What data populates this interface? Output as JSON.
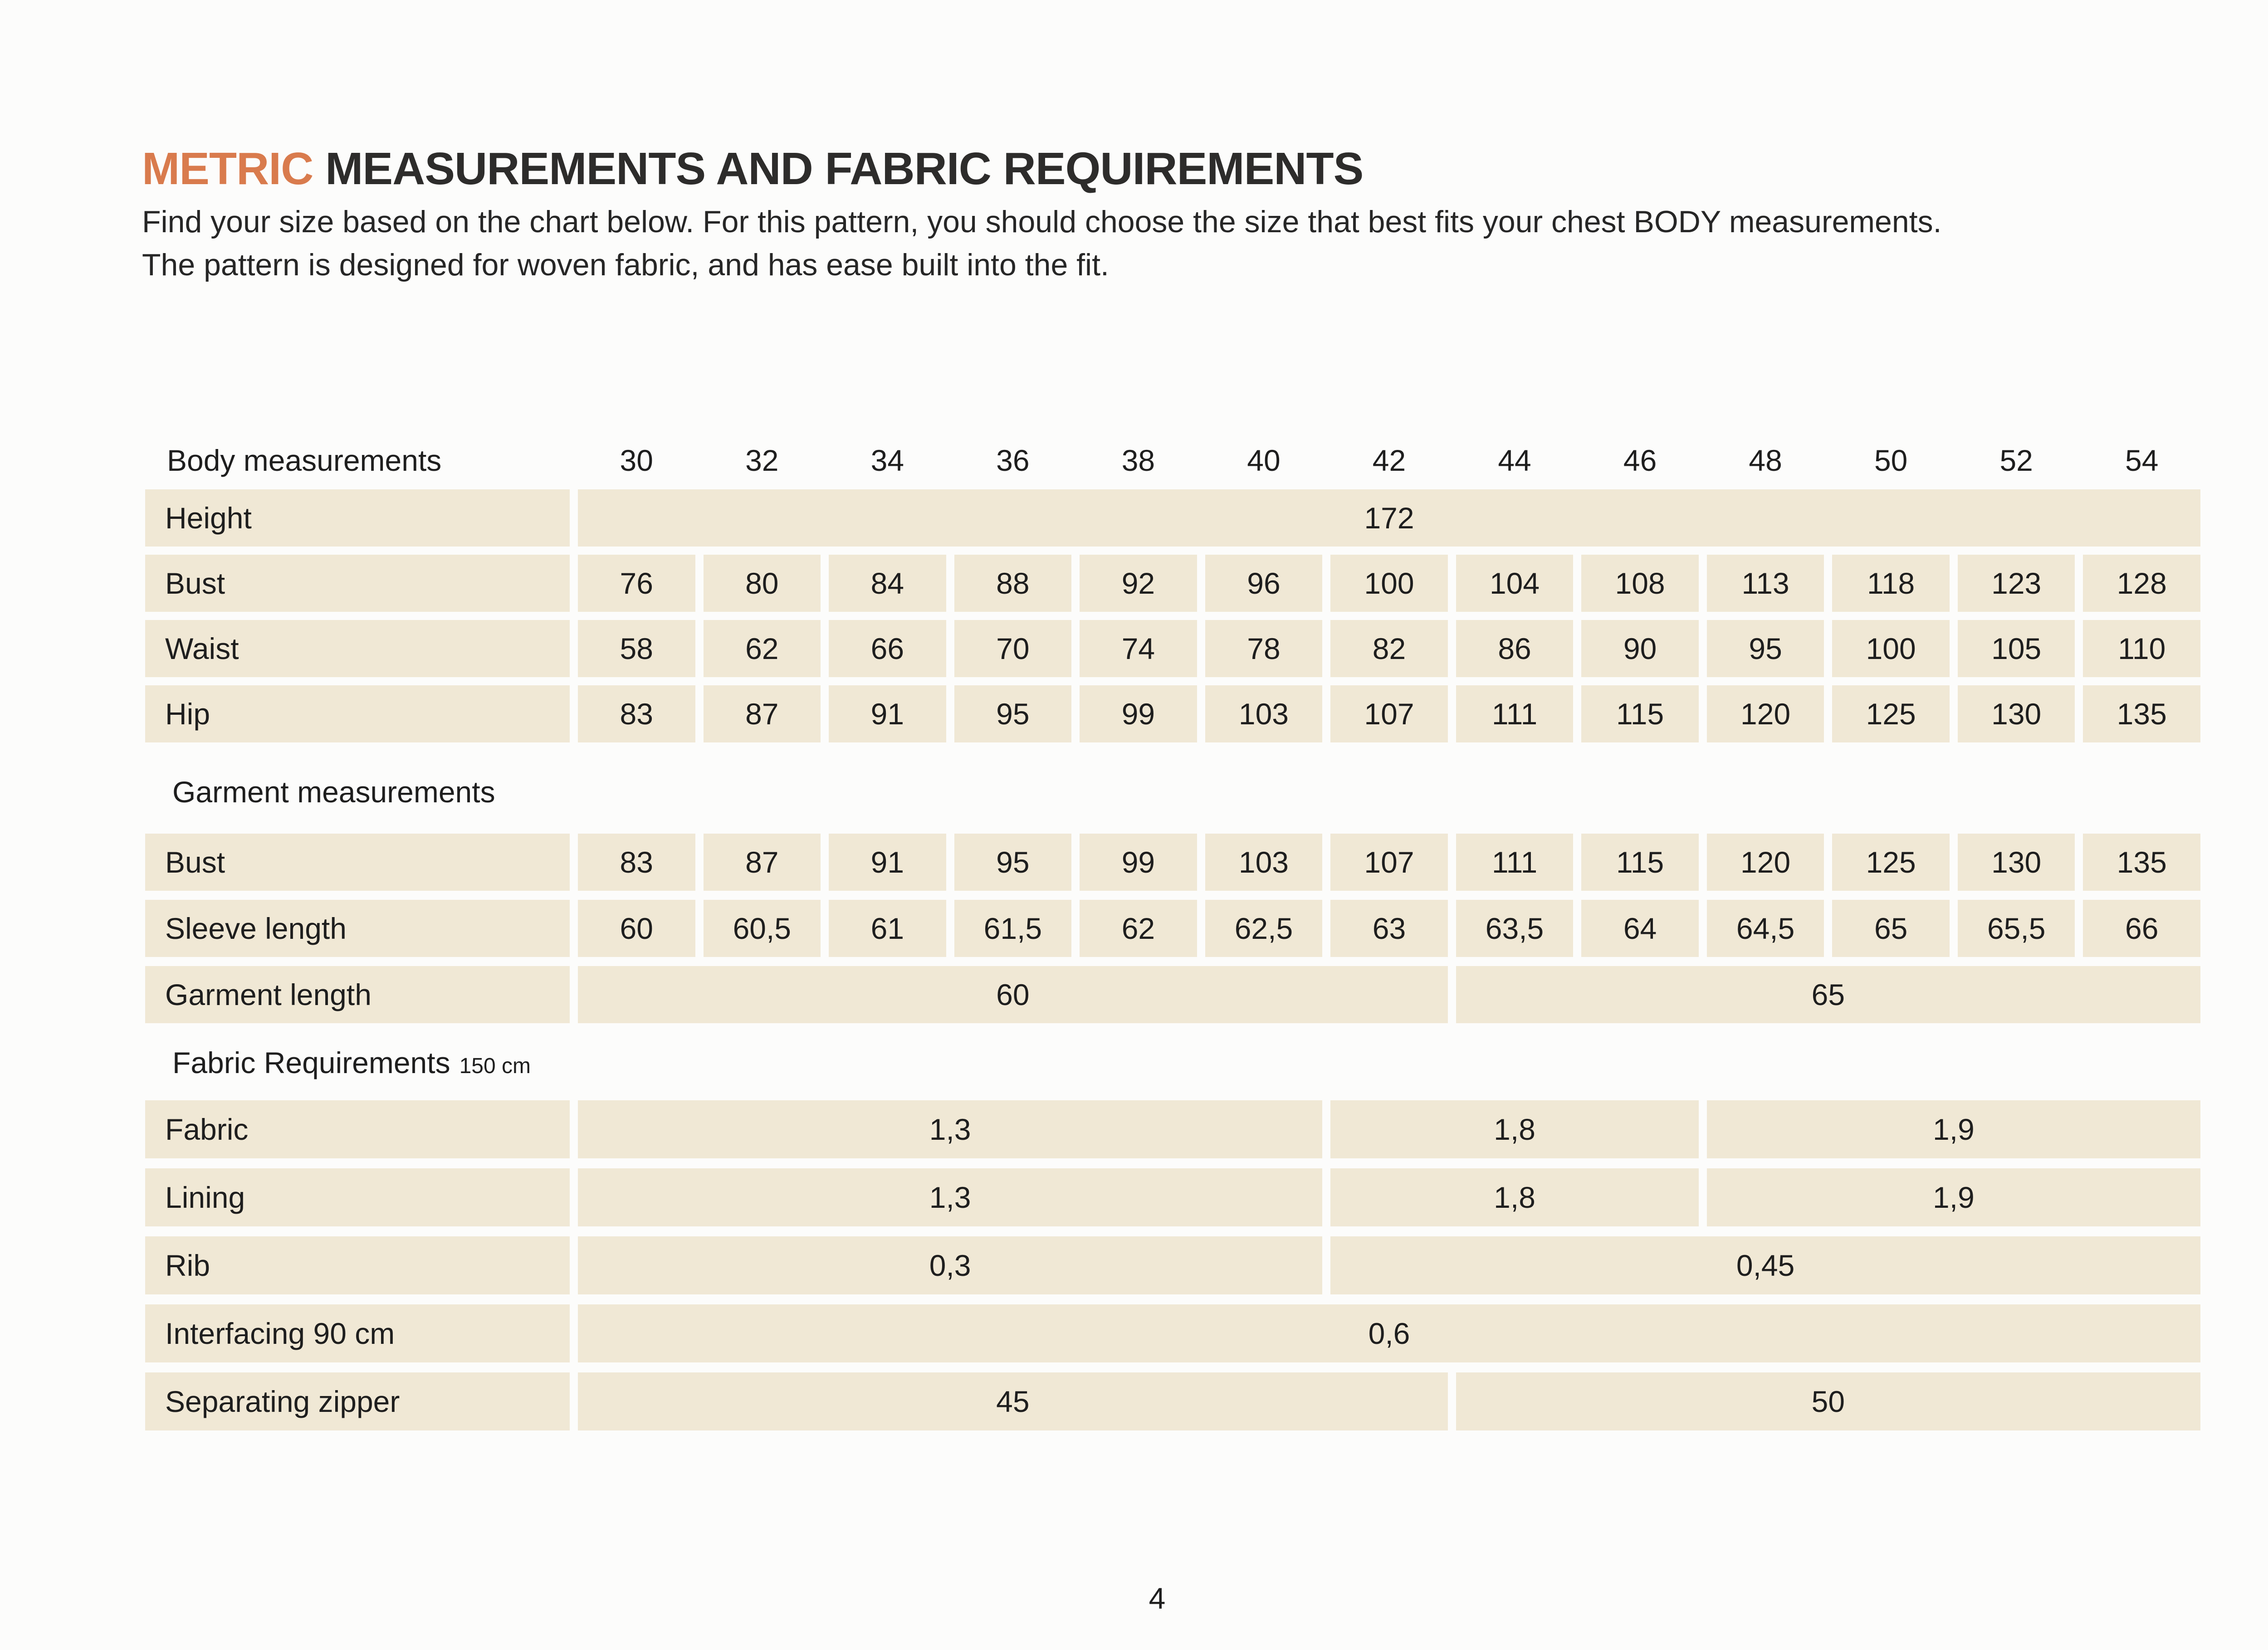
{
  "header": {
    "title_accent": "METRIC",
    "title_rest": " MEASUREMENTS AND FABRIC REQUIREMENTS",
    "intro_line1": "Find your size based on the chart below. For this pattern, you should choose the size that best fits your chest BODY measurements.",
    "intro_line2": "The pattern is designed for woven fabric, and has ease built into the fit."
  },
  "colors": {
    "accent_orange": "#d97b4d",
    "row_background": "#f0e8d5",
    "text": "#1e1e1e"
  },
  "table": {
    "rows": [
      {
        "type": "header",
        "label": "Body measurements",
        "cells": [
          {
            "text": "30",
            "span": 1
          },
          {
            "text": "32",
            "span": 1
          },
          {
            "text": "34",
            "span": 1
          },
          {
            "text": "36",
            "span": 1
          },
          {
            "text": "38",
            "span": 1
          },
          {
            "text": "40",
            "span": 1
          },
          {
            "text": "42",
            "span": 1
          },
          {
            "text": "44",
            "span": 1
          },
          {
            "text": "46",
            "span": 1
          },
          {
            "text": "48",
            "span": 1
          },
          {
            "text": "50",
            "span": 1
          },
          {
            "text": "52",
            "span": 1
          },
          {
            "text": "54",
            "span": 1
          }
        ]
      },
      {
        "type": "row",
        "section": "body",
        "label": "Height",
        "cells": [
          {
            "text": "172",
            "span": 13
          }
        ]
      },
      {
        "type": "row",
        "section": "body",
        "label": "Bust",
        "cells": [
          {
            "text": "76",
            "span": 1
          },
          {
            "text": "80",
            "span": 1
          },
          {
            "text": "84",
            "span": 1
          },
          {
            "text": "88",
            "span": 1
          },
          {
            "text": "92",
            "span": 1
          },
          {
            "text": "96",
            "span": 1
          },
          {
            "text": "100",
            "span": 1
          },
          {
            "text": "104",
            "span": 1
          },
          {
            "text": "108",
            "span": 1
          },
          {
            "text": "113",
            "span": 1
          },
          {
            "text": "118",
            "span": 1
          },
          {
            "text": "123",
            "span": 1
          },
          {
            "text": "128",
            "span": 1
          }
        ]
      },
      {
        "type": "row",
        "section": "body",
        "label": "Waist",
        "cells": [
          {
            "text": "58",
            "span": 1
          },
          {
            "text": "62",
            "span": 1
          },
          {
            "text": "66",
            "span": 1
          },
          {
            "text": "70",
            "span": 1
          },
          {
            "text": "74",
            "span": 1
          },
          {
            "text": "78",
            "span": 1
          },
          {
            "text": "82",
            "span": 1
          },
          {
            "text": "86",
            "span": 1
          },
          {
            "text": "90",
            "span": 1
          },
          {
            "text": "95",
            "span": 1
          },
          {
            "text": "100",
            "span": 1
          },
          {
            "text": "105",
            "span": 1
          },
          {
            "text": "110",
            "span": 1
          }
        ]
      },
      {
        "type": "row",
        "section": "body",
        "label": "Hip",
        "cells": [
          {
            "text": "83",
            "span": 1
          },
          {
            "text": "87",
            "span": 1
          },
          {
            "text": "91",
            "span": 1
          },
          {
            "text": "95",
            "span": 1
          },
          {
            "text": "99",
            "span": 1
          },
          {
            "text": "103",
            "span": 1
          },
          {
            "text": "107",
            "span": 1
          },
          {
            "text": "111",
            "span": 1
          },
          {
            "text": "115",
            "span": 1
          },
          {
            "text": "120",
            "span": 1
          },
          {
            "text": "125",
            "span": 1
          },
          {
            "text": "130",
            "span": 1
          },
          {
            "text": "135",
            "span": 1
          }
        ]
      },
      {
        "type": "heading",
        "section": "garment",
        "label": "Garment measurements"
      },
      {
        "type": "row",
        "section": "garment",
        "label": "Bust",
        "cells": [
          {
            "text": "83",
            "span": 1
          },
          {
            "text": "87",
            "span": 1
          },
          {
            "text": "91",
            "span": 1
          },
          {
            "text": "95",
            "span": 1
          },
          {
            "text": "99",
            "span": 1
          },
          {
            "text": "103",
            "span": 1
          },
          {
            "text": "107",
            "span": 1
          },
          {
            "text": "111",
            "span": 1
          },
          {
            "text": "115",
            "span": 1
          },
          {
            "text": "120",
            "span": 1
          },
          {
            "text": "125",
            "span": 1
          },
          {
            "text": "130",
            "span": 1
          },
          {
            "text": "135",
            "span": 1
          }
        ]
      },
      {
        "type": "row",
        "section": "garment",
        "label": "Sleeve length",
        "cells": [
          {
            "text": "60",
            "span": 1
          },
          {
            "text": "60,5",
            "span": 1
          },
          {
            "text": "61",
            "span": 1
          },
          {
            "text": "61,5",
            "span": 1
          },
          {
            "text": "62",
            "span": 1
          },
          {
            "text": "62,5",
            "span": 1
          },
          {
            "text": "63",
            "span": 1
          },
          {
            "text": "63,5",
            "span": 1
          },
          {
            "text": "64",
            "span": 1
          },
          {
            "text": "64,5",
            "span": 1
          },
          {
            "text": "65",
            "span": 1
          },
          {
            "text": "65,5",
            "span": 1
          },
          {
            "text": "66",
            "span": 1
          }
        ]
      },
      {
        "type": "row",
        "section": "garment",
        "label": "Garment length",
        "cells": [
          {
            "text": "60",
            "span": 7
          },
          {
            "text": "65",
            "span": 6
          }
        ]
      },
      {
        "type": "heading",
        "section": "fabric",
        "label": "Fabric Requirements",
        "suffix": "150 cm"
      },
      {
        "type": "row",
        "section": "fabric",
        "label": "Fabric",
        "cells": [
          {
            "text": "1,3",
            "span": 6
          },
          {
            "text": "1,8",
            "span": 3
          },
          {
            "text": "1,9",
            "span": 4
          }
        ]
      },
      {
        "type": "row",
        "section": "fabric",
        "label": "Lining",
        "cells": [
          {
            "text": "1,3",
            "span": 6
          },
          {
            "text": "1,8",
            "span": 3
          },
          {
            "text": "1,9",
            "span": 4
          }
        ]
      },
      {
        "type": "row",
        "section": "fabric",
        "label": "Rib",
        "cells": [
          {
            "text": "0,3",
            "span": 6
          },
          {
            "text": "0,45",
            "span": 7
          }
        ]
      },
      {
        "type": "row",
        "section": "fabric",
        "label": "Interfacing 90 cm",
        "cells": [
          {
            "text": "0,6",
            "span": 13
          }
        ]
      },
      {
        "type": "row",
        "section": "fabric",
        "label": "Separating zipper",
        "cells": [
          {
            "text": "45",
            "span": 7
          },
          {
            "text": "50",
            "span": 6
          }
        ]
      }
    ]
  },
  "footer": {
    "page_number": "4"
  }
}
